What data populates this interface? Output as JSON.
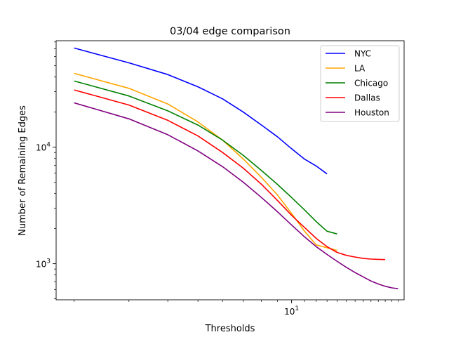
{
  "chart_data": {
    "type": "line",
    "title": "03/04 edge comparison",
    "xlabel": "Thresholds",
    "ylabel": "Number of Remaining Edges",
    "xscale": "log",
    "yscale": "log",
    "xlim": [
      1.75,
      23.0
    ],
    "ylim": [
      490,
      82000
    ],
    "x_ticks": [
      {
        "value": 10,
        "label": "10",
        "sup": "1"
      }
    ],
    "y_ticks": [
      {
        "value": 1000,
        "label": "10",
        "sup": "3"
      },
      {
        "value": 10000,
        "label": "10",
        "sup": "4"
      }
    ],
    "legend_position": "top-right",
    "grid": false,
    "series": [
      {
        "name": "NYC",
        "color": "#0000ff",
        "x": [
          2,
          3,
          4,
          5,
          6,
          7,
          8,
          9,
          10,
          11,
          12,
          13
        ],
        "y": [
          71000,
          53000,
          42000,
          33000,
          26000,
          20000,
          15500,
          12300,
          9700,
          7900,
          6900,
          5900
        ]
      },
      {
        "name": "LA",
        "color": "#ffa500",
        "x": [
          2,
          3,
          4,
          5,
          6,
          7,
          8,
          9,
          10,
          11,
          12,
          14
        ],
        "y": [
          43000,
          32000,
          23500,
          16500,
          11500,
          7900,
          5500,
          3900,
          2700,
          1900,
          1450,
          1300
        ]
      },
      {
        "name": "Chicago",
        "color": "#008000",
        "x": [
          2,
          3,
          4,
          5,
          6,
          7,
          8,
          9,
          10,
          11,
          12,
          13,
          14
        ],
        "y": [
          37000,
          27500,
          20500,
          15500,
          11500,
          8500,
          6300,
          4800,
          3700,
          2900,
          2300,
          1900,
          1800
        ]
      },
      {
        "name": "Dallas",
        "color": "#ff0000",
        "x": [
          2,
          3,
          4,
          5,
          6,
          7,
          8,
          9,
          10,
          11,
          12,
          13,
          14,
          15,
          16,
          17,
          18,
          19,
          20
        ],
        "y": [
          31000,
          23000,
          17000,
          12500,
          9000,
          6600,
          4800,
          3500,
          2600,
          2050,
          1650,
          1400,
          1250,
          1180,
          1140,
          1110,
          1095,
          1090,
          1085
        ]
      },
      {
        "name": "Houston",
        "color": "#800080",
        "x": [
          2,
          3,
          4,
          5,
          6,
          7,
          8,
          9,
          10,
          11,
          12,
          13,
          14,
          15,
          16,
          17,
          18,
          19,
          20,
          21,
          22
        ],
        "y": [
          24000,
          17500,
          12800,
          9300,
          6800,
          5000,
          3700,
          2800,
          2150,
          1700,
          1400,
          1200,
          1050,
          930,
          840,
          770,
          710,
          670,
          640,
          620,
          610
        ]
      }
    ]
  }
}
